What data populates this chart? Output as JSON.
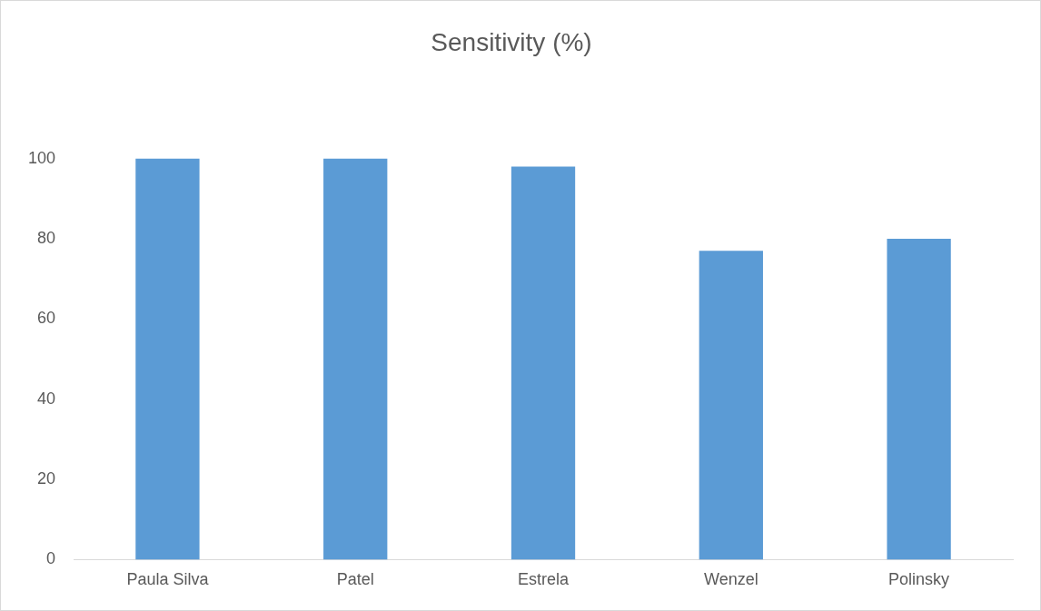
{
  "chart_data": {
    "type": "bar",
    "title": "Sensitivity (%)",
    "categories": [
      "Paula Silva",
      "Patel",
      "Estrela",
      "Wenzel",
      "Polinsky"
    ],
    "values": [
      100,
      100,
      98,
      77,
      80
    ],
    "color": "#5b9bd5",
    "ylim": [
      0,
      100
    ],
    "yticks": [
      0,
      20,
      40,
      60,
      80,
      100
    ],
    "grid": false,
    "legend": false
  }
}
